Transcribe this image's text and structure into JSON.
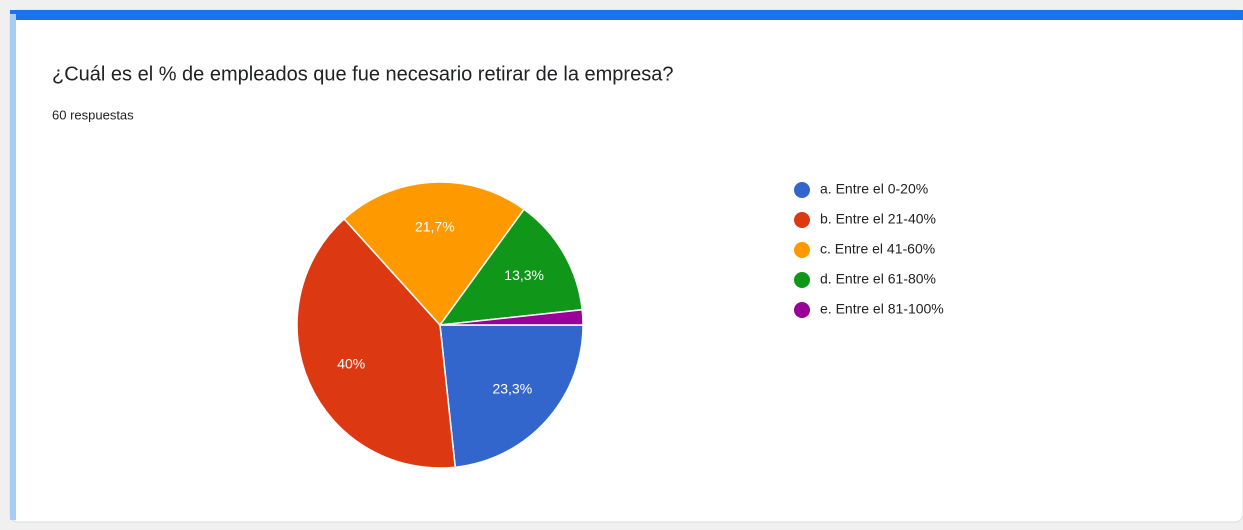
{
  "chart_data": {
    "type": "pie",
    "title": "¿Cuál es el % de empleados que fue necesario retirar de la empresa?",
    "subtitle": "60 respuestas",
    "categories": [
      "a. Entre el 0-20%",
      "b. Entre el 21-40%",
      "c. Entre el 41-60%",
      "d. Entre el 61-80%",
      "e. Entre el 81-100%"
    ],
    "values": [
      23.3,
      40,
      21.7,
      13.3,
      1.7
    ],
    "value_labels": [
      "23,3%",
      "40%",
      "21,7%",
      "13,3%",
      null
    ],
    "colors": [
      "#3366cc",
      "#dc3912",
      "#ff9900",
      "#109618",
      "#990099"
    ],
    "legend": "right"
  }
}
